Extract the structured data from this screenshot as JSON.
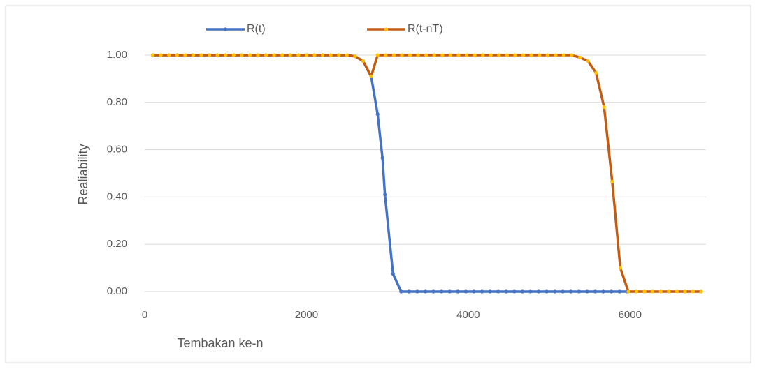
{
  "chart_data": {
    "type": "line",
    "xlabel": "Tembakan ke-n",
    "ylabel": "Realiability",
    "xlim": [
      0,
      7000
    ],
    "xticks": [
      0,
      2000,
      4000,
      6000
    ],
    "ylim": [
      0,
      1
    ],
    "yticks": [
      {
        "value": 0,
        "label": "0.00"
      },
      {
        "value": 0.2,
        "label": "0.20"
      },
      {
        "value": 0.4,
        "label": "0.40"
      },
      {
        "value": 0.6,
        "label": "0.60"
      },
      {
        "value": 0.8,
        "label": "0.80"
      },
      {
        "value": 1,
        "label": "1.00"
      }
    ],
    "grid": true,
    "legend": "top",
    "series": [
      {
        "name": "R(t)",
        "color": "#4472c4",
        "marker_color": "#4472c4",
        "x": [
          100,
          200,
          300,
          400,
          500,
          600,
          700,
          800,
          900,
          1000,
          1100,
          1200,
          1300,
          1400,
          1500,
          1600,
          1700,
          1800,
          1900,
          2000,
          2100,
          2200,
          2300,
          2400,
          2500,
          2600,
          2700,
          2800,
          2880,
          2940,
          2970,
          3070,
          3170,
          3270,
          3370,
          3470,
          3570,
          3670,
          3770,
          3870,
          3970,
          4070,
          4170,
          4270,
          4370,
          4470,
          4570,
          4670,
          4770,
          4870,
          4970,
          5070,
          5170,
          5270,
          5370,
          5470,
          5570,
          5670,
          5770,
          5870,
          5970
        ],
        "values": [
          1,
          1,
          1,
          1,
          1,
          1,
          1,
          1,
          1,
          1,
          1,
          1,
          1,
          1,
          1,
          1,
          1,
          1,
          1,
          1,
          1,
          1,
          1,
          1,
          1,
          0.995,
          0.975,
          0.91,
          0.75,
          0.565,
          0.41,
          0.075,
          0,
          0,
          0,
          0,
          0,
          0,
          0,
          0,
          0,
          0,
          0,
          0,
          0,
          0,
          0,
          0,
          0,
          0,
          0,
          0,
          0,
          0,
          0,
          0,
          0,
          0,
          0,
          0,
          0
        ]
      },
      {
        "name": "R(t-nT)",
        "color": "#c55a11",
        "marker_color": "#ffc000",
        "x": [
          100,
          200,
          300,
          400,
          500,
          600,
          700,
          800,
          900,
          1000,
          1100,
          1200,
          1300,
          1400,
          1500,
          1600,
          1700,
          1800,
          1900,
          2000,
          2100,
          2200,
          2300,
          2400,
          2500,
          2600,
          2700,
          2800,
          2880,
          2980,
          3080,
          3180,
          3280,
          3380,
          3480,
          3580,
          3680,
          3780,
          3880,
          3980,
          4080,
          4180,
          4280,
          4380,
          4480,
          4580,
          4680,
          4780,
          4880,
          4980,
          5080,
          5180,
          5280,
          5380,
          5480,
          5580,
          5680,
          5780,
          5880,
          5980,
          6080,
          6180,
          6280,
          6380,
          6480,
          6580,
          6680,
          6780,
          6880
        ],
        "values": [
          1,
          1,
          1,
          1,
          1,
          1,
          1,
          1,
          1,
          1,
          1,
          1,
          1,
          1,
          1,
          1,
          1,
          1,
          1,
          1,
          1,
          1,
          1,
          1,
          1,
          0.995,
          0.975,
          0.91,
          1,
          1,
          1,
          1,
          1,
          1,
          1,
          1,
          1,
          1,
          1,
          1,
          1,
          1,
          1,
          1,
          1,
          1,
          1,
          1,
          1,
          1,
          1,
          1,
          1,
          0.99,
          0.975,
          0.925,
          0.78,
          0.465,
          0.1,
          0,
          0,
          0,
          0,
          0,
          0,
          0,
          0,
          0,
          0
        ]
      }
    ]
  }
}
